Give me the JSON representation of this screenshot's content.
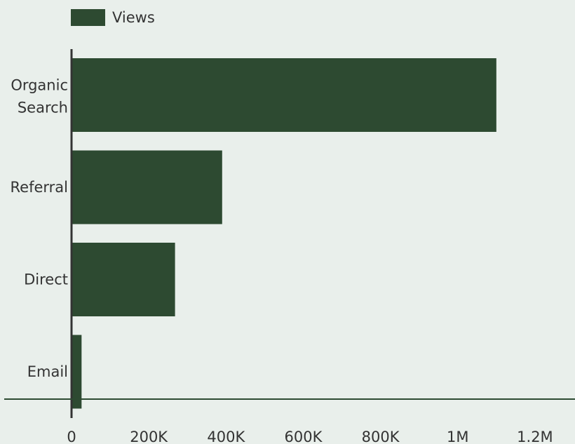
{
  "chart_data": {
    "type": "bar",
    "orientation": "horizontal",
    "categories": [
      "Organic Search",
      "Referral",
      "Direct",
      "Email"
    ],
    "series": [
      {
        "name": "Views",
        "values": [
          1100000,
          390000,
          268000,
          26000
        ],
        "color": "#2d4a31"
      }
    ],
    "xlim": [
      0,
      1300000
    ],
    "xticks": [
      0,
      200000,
      400000,
      600000,
      800000,
      1000000,
      1200000
    ],
    "xtick_labels": [
      "0",
      "200K",
      "400K",
      "600K",
      "800K",
      "1M",
      "1.2M"
    ],
    "grid": false,
    "legend_position": "top-left",
    "xlabel": "",
    "ylabel": "",
    "title": ""
  },
  "colors": {
    "background": "#e9efeb",
    "bar": "#2d4a31",
    "axis": "#333333",
    "baseline": "#2d4a31",
    "text": "#333333"
  }
}
